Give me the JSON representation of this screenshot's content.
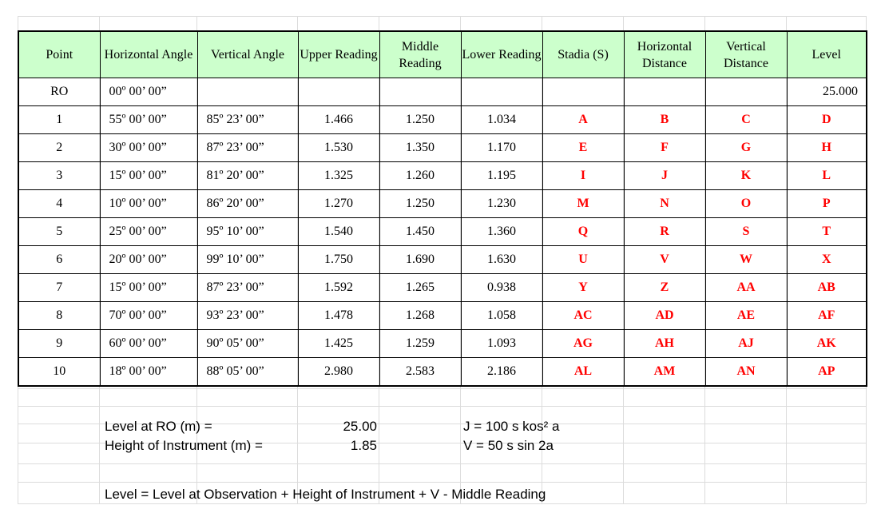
{
  "table": {
    "headers": [
      "Point",
      "Horizontal Angle",
      "Vertical Angle",
      "Upper Reading",
      "Middle Reading",
      "Lower Reading",
      "Stadia (S)",
      "Horizontal Distance",
      "Vertical Distance",
      "Level"
    ],
    "rows": [
      [
        "RO",
        "00º 00’ 00”",
        "",
        "",
        "",
        "",
        "",
        "",
        "",
        "25.000"
      ],
      [
        "1",
        "55º 00’ 00”",
        "85º 23’ 00”",
        "1.466",
        "1.250",
        "1.034",
        "A",
        "B",
        "C",
        "D"
      ],
      [
        "2",
        "30º 00’ 00”",
        "87º 23’ 00”",
        "1.530",
        "1.350",
        "1.170",
        "E",
        "F",
        "G",
        "H"
      ],
      [
        "3",
        "15º 00’ 00”",
        "81º 20’ 00”",
        "1.325",
        "1.260",
        "1.195",
        "I",
        "J",
        "K",
        "L"
      ],
      [
        "4",
        "10º 00’ 00”",
        "86º 20’ 00”",
        "1.270",
        "1.250",
        "1.230",
        "M",
        "N",
        "O",
        "P"
      ],
      [
        "5",
        "25º 00’ 00”",
        "95º 10’ 00”",
        "1.540",
        "1.450",
        "1.360",
        "Q",
        "R",
        "S",
        "T"
      ],
      [
        "6",
        "20º 00’ 00”",
        "99º 10’ 00”",
        "1.750",
        "1.690",
        "1.630",
        "U",
        "V",
        "W",
        "X"
      ],
      [
        "7",
        "15º 00’ 00”",
        "87º 23’ 00”",
        "1.592",
        "1.265",
        "0.938",
        "Y",
        "Z",
        "AA",
        "AB"
      ],
      [
        "8",
        "70º 00’ 00”",
        "93º 23’ 00”",
        "1.478",
        "1.268",
        "1.058",
        "AC",
        "AD",
        "AE",
        "AF"
      ],
      [
        "9",
        "60º 00’ 00”",
        "90º 05’ 00”",
        "1.425",
        "1.259",
        "1.093",
        "AG",
        "AH",
        "AJ",
        "AK"
      ],
      [
        "10",
        "18º 00’ 00”",
        "88º 05’ 00”",
        "2.980",
        "2.583",
        "2.186",
        "AL",
        "AM",
        "AN",
        "AP"
      ]
    ]
  },
  "notes": {
    "level_ro_label": "Level at RO (m) =",
    "level_ro_value": "25.00",
    "hi_label": "Height of Instrument (m)  =",
    "hi_value": "1.85",
    "formula_j": "J = 100 s kos² a",
    "formula_v": "V = 50 s sin 2a",
    "formula_level": "Level = Level at Observation + Height of Instrument + V - Middle Reading"
  },
  "colors": {
    "header_bg": "#ccffcc",
    "unknown_text": "#ff0000"
  }
}
